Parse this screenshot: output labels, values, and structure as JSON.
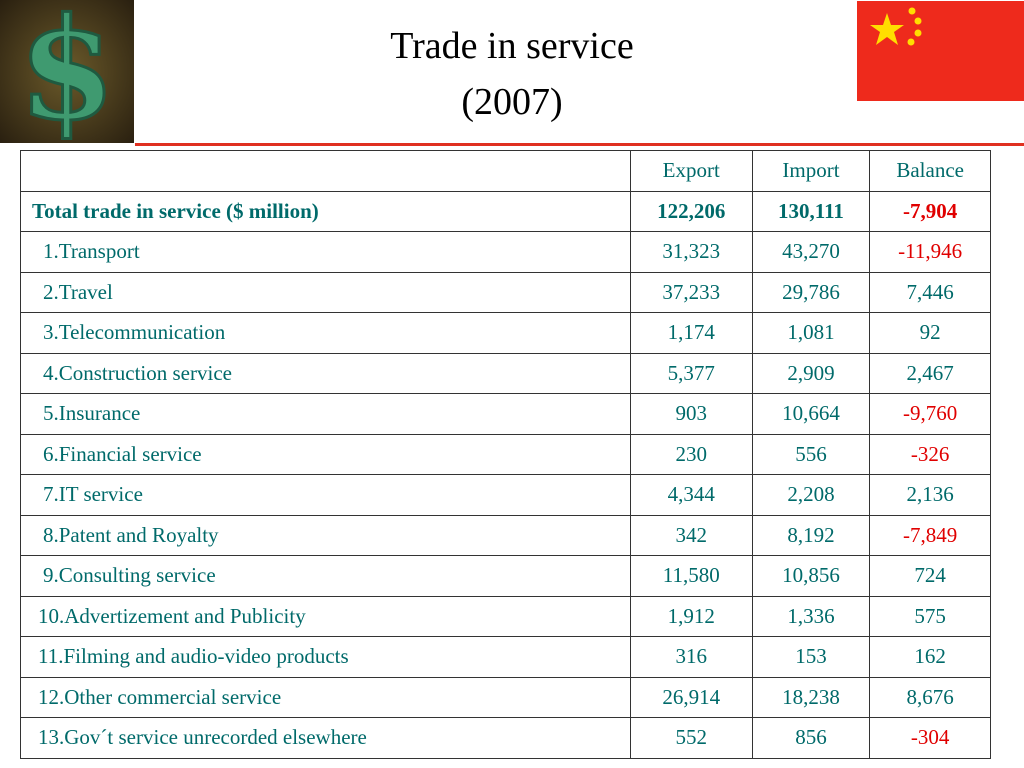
{
  "header": {
    "title": "Trade in service",
    "subtitle": "(2007)"
  },
  "table": {
    "columns": [
      "Export",
      "Import",
      "Balance"
    ],
    "total": {
      "label": "Total trade in service ($ million)",
      "values": [
        "122,206",
        "130,111",
        "-7,904"
      ]
    },
    "rows": [
      [
        "1.Transport",
        "31,323",
        "43,270",
        "-11,946"
      ],
      [
        "2.Travel",
        "37,233",
        "29,786",
        "7,446"
      ],
      [
        "3.Telecommunication",
        "1,174",
        "1,081",
        "92"
      ],
      [
        "4.Construction service",
        "5,377",
        "2,909",
        "2,467"
      ],
      [
        "5.Insurance",
        "903",
        "10,664",
        "-9,760"
      ],
      [
        "6.Financial service",
        "230",
        "556",
        "-326"
      ],
      [
        "7.IT service",
        "4,344",
        "2,208",
        "2,136"
      ],
      [
        "8.Patent and Royalty",
        "342",
        "8,192",
        "-7,849"
      ],
      [
        "9.Consulting service",
        "11,580",
        "10,856",
        "724"
      ],
      [
        "10.Advertizement and Publicity",
        "1,912",
        "1,336",
        "575"
      ],
      [
        "11.Filming and audio-video products",
        "316",
        "153",
        "162"
      ],
      [
        "12.Other commercial service",
        "26,914",
        "18,238",
        "8,676"
      ],
      [
        "13.Gov´t service unrecorded elsewhere",
        "552",
        "856",
        "-304"
      ]
    ]
  }
}
